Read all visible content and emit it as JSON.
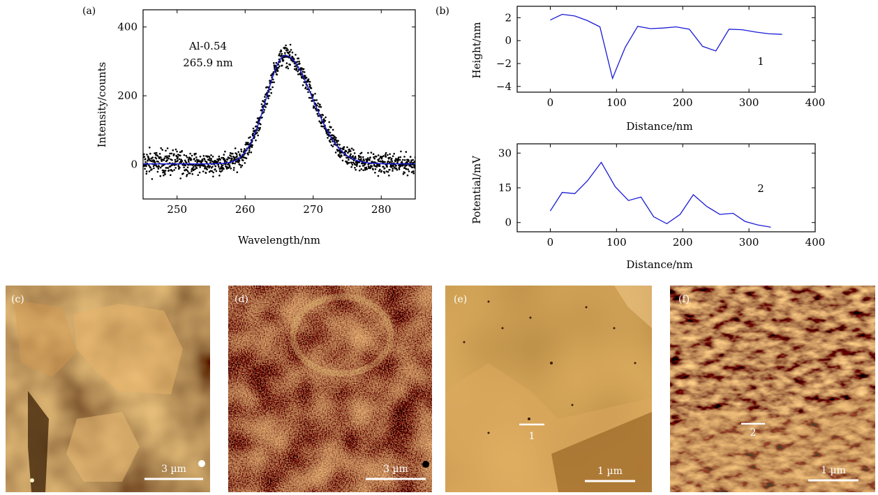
{
  "chart_data": [
    {
      "panel": "(a)",
      "type": "scatter",
      "xlabel": "Wavelength/nm",
      "ylabel": "Intensity/counts",
      "xlim": [
        245,
        285
      ],
      "ylim": [
        -100,
        450
      ],
      "xticks": [
        250,
        260,
        270,
        280
      ],
      "yticks": [
        0,
        200,
        400
      ],
      "annotations": [
        "Al-0.54",
        "265.9 nm"
      ],
      "fit": {
        "kind": "gaussian",
        "center": 265.9,
        "amplitude": 315,
        "sigma_left": 2.8,
        "sigma_right": 4.0,
        "baseline": 2
      },
      "scatter_summary": {
        "x_range": [
          245,
          285
        ],
        "noise": 22,
        "peak_max": 360
      },
      "colors": {
        "points": "#000000",
        "fit_line": "#1a1ad6"
      }
    },
    {
      "panel": "(b)",
      "type": "line",
      "label": "1",
      "xlabel": "Distance/nm",
      "ylabel": "Height/nm",
      "xlim": [
        -50,
        400
      ],
      "ylim": [
        -4.5,
        3
      ],
      "xticks": [
        0,
        100,
        200,
        300,
        400
      ],
      "yticks": [
        -4,
        -2,
        0,
        2
      ],
      "x": [
        0,
        18,
        37,
        56,
        75,
        94,
        113,
        132,
        151,
        170,
        190,
        210,
        230,
        250,
        270,
        290,
        310,
        330,
        350
      ],
      "y": [
        1.8,
        2.3,
        2.15,
        1.75,
        1.2,
        -3.3,
        -0.6,
        1.25,
        1.05,
        1.1,
        1.2,
        1.0,
        -0.5,
        -0.9,
        1.0,
        0.95,
        0.75,
        0.6,
        0.55
      ],
      "color": "#1a1ad6"
    },
    {
      "type": "line",
      "label": "2",
      "xlabel": "Distance/nm",
      "ylabel": "Potential/mV",
      "xlim": [
        -50,
        400
      ],
      "ylim": [
        -4,
        34
      ],
      "xticks": [
        0,
        100,
        200,
        300,
        400
      ],
      "yticks": [
        0,
        15,
        30
      ],
      "x": [
        0,
        18,
        37,
        56,
        77,
        98,
        118,
        137,
        156,
        176,
        196,
        216,
        236,
        256,
        276,
        294,
        313,
        333
      ],
      "y": [
        5,
        13,
        12.5,
        18,
        26,
        15.5,
        9.5,
        11,
        2.5,
        -0.5,
        3.5,
        12,
        7,
        3.5,
        4,
        0.5,
        -1,
        -2
      ],
      "color": "#1a1ad6"
    }
  ],
  "images": [
    {
      "panel": "(c)",
      "scale_bar": "3 µm",
      "line_label": ""
    },
    {
      "panel": "(d)",
      "scale_bar": "3 µm",
      "line_label": ""
    },
    {
      "panel": "(e)",
      "scale_bar": "1 µm",
      "line_label": "1"
    },
    {
      "panel": "(f)",
      "scale_bar": "1 µm",
      "line_label": "2"
    }
  ]
}
